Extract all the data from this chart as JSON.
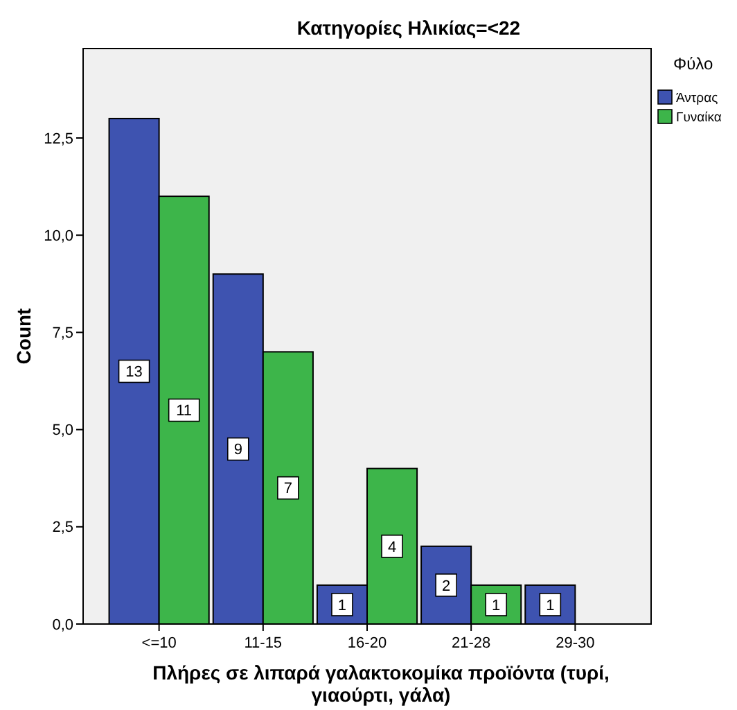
{
  "chart_data": {
    "type": "bar",
    "title": "Κατηγορίες Ηλικίας=<22",
    "xlabel": "Πλήρες σε λιπαρά γαλακτοκομίκα προϊόντα (τυρί, γιαούρτι, γάλα)",
    "ylabel": "Count",
    "legend_title": "Φύλο",
    "categories": [
      "<=10",
      "11-15",
      "16-20",
      "21-28",
      "29-30"
    ],
    "series": [
      {
        "name": "Άντρας",
        "color": "#3e53b0",
        "values": [
          13,
          9,
          1,
          2,
          1
        ]
      },
      {
        "name": "Γυναίκα",
        "color": "#3db54a",
        "values": [
          11,
          7,
          4,
          1,
          null
        ]
      }
    ],
    "ylim": [
      0,
      14.8
    ],
    "yticks": [
      {
        "value": 0,
        "label": "0,0"
      },
      {
        "value": 2.5,
        "label": "2,5"
      },
      {
        "value": 5,
        "label": "5,0"
      },
      {
        "value": 7.5,
        "label": "7,5"
      },
      {
        "value": 10,
        "label": "10,0"
      },
      {
        "value": 12.5,
        "label": "12,5"
      }
    ],
    "data_labels": true,
    "legend": "right"
  }
}
